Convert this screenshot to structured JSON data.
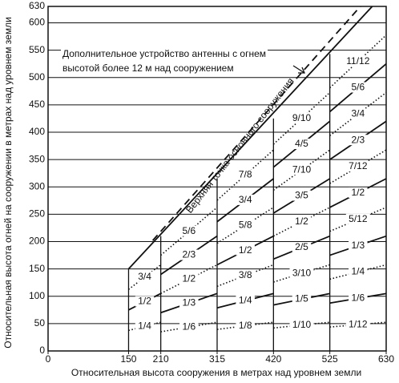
{
  "chart_data": {
    "type": "zoned-line",
    "xlabel": "Относительная высота сооружения в метрах над уровнем земли",
    "ylabel": "Относительная высота огней на сооружении в метрах над уровнем земли",
    "xlim": [
      0,
      630
    ],
    "ylim": [
      0,
      630
    ],
    "xticks": [
      0,
      150,
      210,
      315,
      420,
      525,
      630
    ],
    "yticks": [
      0,
      50,
      100,
      150,
      200,
      250,
      300,
      350,
      400,
      450,
      500,
      550,
      600,
      630
    ],
    "grid": true,
    "series": [
      {
        "name": "Верхняя точка основного сооружения",
        "style": "solid",
        "x": [
          150,
          604
        ],
        "y": [
          150,
          630
        ]
      },
      {
        "name": "Дополнительное устройство антенны с огнем высотой более 12 м над сооружением",
        "style": "dashed",
        "x": [
          195,
          582
        ],
        "y": [
          202,
          630
        ]
      }
    ],
    "annotation_lines": [
      "Дополнительное устройство антенны с огнем",
      "высотой более 12 м над сооружением"
    ],
    "zones": [
      {
        "x": [
          150,
          210
        ],
        "top": 150,
        "lines": [
          {
            "label": "1/4",
            "style": "dotted",
            "y": [
              37.5,
              52.5
            ]
          },
          {
            "label": "1/2",
            "style": "solid",
            "y": [
              75,
              105
            ]
          },
          {
            "label": "3/4",
            "style": "dotted",
            "y": [
              112.5,
              157.5
            ]
          }
        ]
      },
      {
        "x": [
          210,
          315
        ],
        "top": 210,
        "lines": [
          {
            "label": "1/6",
            "style": "dotted",
            "y": [
              35,
              52.5
            ]
          },
          {
            "label": "1/3",
            "style": "solid",
            "y": [
              70,
              105
            ]
          },
          {
            "label": "1/2",
            "style": "dotted",
            "y": [
              105,
              157.5
            ]
          },
          {
            "label": "2/3",
            "style": "solid",
            "y": [
              140,
              210
            ]
          },
          {
            "label": "5/6",
            "style": "dotted",
            "y": [
              175,
              262.5
            ]
          }
        ]
      },
      {
        "x": [
          315,
          420
        ],
        "top": 316,
        "lines": [
          {
            "label": "1/8",
            "style": "dotted",
            "y": [
              39.375,
              52.5
            ]
          },
          {
            "label": "1/4",
            "style": "solid",
            "y": [
              78.75,
              105
            ]
          },
          {
            "label": "3/8",
            "style": "dotted",
            "y": [
              118.125,
              157.5
            ]
          },
          {
            "label": "1/2",
            "style": "solid",
            "y": [
              157.5,
              210
            ]
          },
          {
            "label": "5/8",
            "style": "dotted",
            "y": [
              196.875,
              262.5
            ]
          },
          {
            "label": "3/4",
            "style": "solid",
            "y": [
              236.25,
              315
            ]
          },
          {
            "label": "7/8",
            "style": "dotted",
            "y": [
              275.625,
              367.5
            ]
          }
        ]
      },
      {
        "x": [
          420,
          525
        ],
        "top": 425,
        "lines": [
          {
            "label": "1/10",
            "style": "dotted",
            "y": [
              42,
              52.5
            ]
          },
          {
            "label": "1/5",
            "style": "solid",
            "y": [
              84,
              105
            ]
          },
          {
            "label": "3/10",
            "style": "dotted",
            "y": [
              126,
              157.5
            ]
          },
          {
            "label": "2/5",
            "style": "solid",
            "y": [
              168,
              210
            ]
          },
          {
            "label": "1/2",
            "style": "dotted",
            "y": [
              210,
              262.5
            ]
          },
          {
            "label": "3/5",
            "style": "solid",
            "y": [
              252,
              315
            ]
          },
          {
            "label": "7/10",
            "style": "dotted",
            "y": [
              294,
              367.5
            ]
          },
          {
            "label": "4/5",
            "style": "solid",
            "y": [
              336,
              420
            ]
          },
          {
            "label": "9/10",
            "style": "dotted",
            "y": [
              378,
              472.5
            ]
          }
        ]
      },
      {
        "x": [
          525,
          630
        ],
        "top": 543,
        "lines": [
          {
            "label": "1/12",
            "style": "dotted",
            "y": [
              43.75,
              52.5
            ]
          },
          {
            "label": "1/6",
            "style": "solid",
            "y": [
              87.5,
              105
            ]
          },
          {
            "label": "1/4",
            "style": "dotted",
            "y": [
              131.25,
              157.5
            ]
          },
          {
            "label": "1/3",
            "style": "solid",
            "y": [
              175,
              210
            ]
          },
          {
            "label": "5/12",
            "style": "dotted",
            "y": [
              218.75,
              262.5
            ]
          },
          {
            "label": "1/2",
            "style": "solid",
            "y": [
              262.5,
              315
            ]
          },
          {
            "label": "7/12",
            "style": "dotted",
            "y": [
              306.25,
              367.5
            ]
          },
          {
            "label": "2/3",
            "style": "solid",
            "y": [
              350,
              420
            ]
          },
          {
            "label": "3/4",
            "style": "dotted",
            "y": [
              393.75,
              472.5
            ]
          },
          {
            "label": "5/6",
            "style": "solid",
            "y": [
              437.5,
              525
            ]
          },
          {
            "label": "11/12",
            "style": "dotted",
            "y": [
              481.25,
              577.5
            ]
          }
        ]
      }
    ]
  }
}
